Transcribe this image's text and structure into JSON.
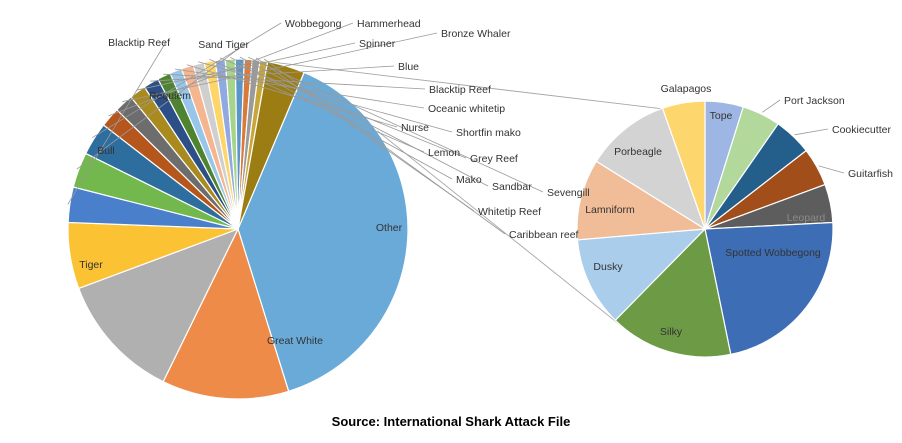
{
  "chart_data": [
    {
      "type": "pie",
      "title": "",
      "slices": [
        {
          "label": "Great White",
          "value": 37.0,
          "color": "#6aaad8"
        },
        {
          "label": "Tiger",
          "value": 11.5,
          "color": "#ee8b48"
        },
        {
          "label": "Bull",
          "value": 11.5,
          "color": "#b0b0b0"
        },
        {
          "label": "Requiem",
          "value": 6.0,
          "color": "#fbc234"
        },
        {
          "label": "Blacktip Reef",
          "value": 3.2,
          "color": "#4a7fcb"
        },
        {
          "label": "Sand Tiger",
          "value": 3.2,
          "color": "#72b84d"
        },
        {
          "label": "Wobbegong",
          "value": 3.0,
          "color": "#2e6e9e"
        },
        {
          "label": "Hammerhead",
          "value": 1.8,
          "color": "#b5561c"
        },
        {
          "label": "Bronze Whaler",
          "value": 1.7,
          "color": "#6d6d6d"
        },
        {
          "label": "Spinner",
          "value": 1.5,
          "color": "#a88a1e"
        },
        {
          "label": "Blue",
          "value": 1.4,
          "color": "#2b4f86"
        },
        {
          "label": "Blacktip Reef",
          "value": 1.2,
          "color": "#4e8430"
        },
        {
          "label": "Oceanic whitetip",
          "value": 1.1,
          "color": "#97c6ea"
        },
        {
          "label": "Nurse",
          "value": 1.1,
          "color": "#f4b58f"
        },
        {
          "label": "Shortfin mako",
          "value": 1.0,
          "color": "#cfcfcf"
        },
        {
          "label": "Lemon",
          "value": 1.0,
          "color": "#fdd568"
        },
        {
          "label": "Grey Reef",
          "value": 0.9,
          "color": "#90a9e0"
        },
        {
          "label": "Mako",
          "value": 0.9,
          "color": "#a7d48c"
        },
        {
          "label": "Sandbar",
          "value": 0.8,
          "color": "#5a95c9"
        },
        {
          "label": "Sevengill",
          "value": 0.7,
          "color": "#d97a3a"
        },
        {
          "label": "Whitetip Reef",
          "value": 0.7,
          "color": "#9a9a9a"
        },
        {
          "label": "Caribbean reef",
          "value": 0.7,
          "color": "#c9a63a"
        },
        {
          "label": "Other",
          "value": 3.4,
          "color": "#9b7d13"
        }
      ]
    },
    {
      "type": "pie",
      "title": "",
      "slices": [
        {
          "label": "Tope",
          "value": 4.5,
          "color": "#9db6e3"
        },
        {
          "label": "Port Jackson",
          "value": 4.5,
          "color": "#b2d89c"
        },
        {
          "label": "Cookiecutter",
          "value": 4.5,
          "color": "#245f8c"
        },
        {
          "label": "Guitarfish",
          "value": 4.5,
          "color": "#a24e1a"
        },
        {
          "label": "Leopard",
          "value": 4.5,
          "color": "#5d5d5d"
        },
        {
          "label": "Spotted Wobbegong",
          "value": 21.0,
          "color": "#3d6db5"
        },
        {
          "label": "Silky",
          "value": 14.5,
          "color": "#6c9a45"
        },
        {
          "label": "Dusky",
          "value": 10.5,
          "color": "#a9cdeb"
        },
        {
          "label": "Lamniform",
          "value": 9.5,
          "color": "#f1bc98"
        },
        {
          "label": "Porbeagle",
          "value": 10.0,
          "color": "#d3d3d3"
        },
        {
          "label": "Galapagos",
          "value": 5.0,
          "color": "#fdd66e"
        }
      ]
    }
  ],
  "source": "Source: International Shark Attack File"
}
